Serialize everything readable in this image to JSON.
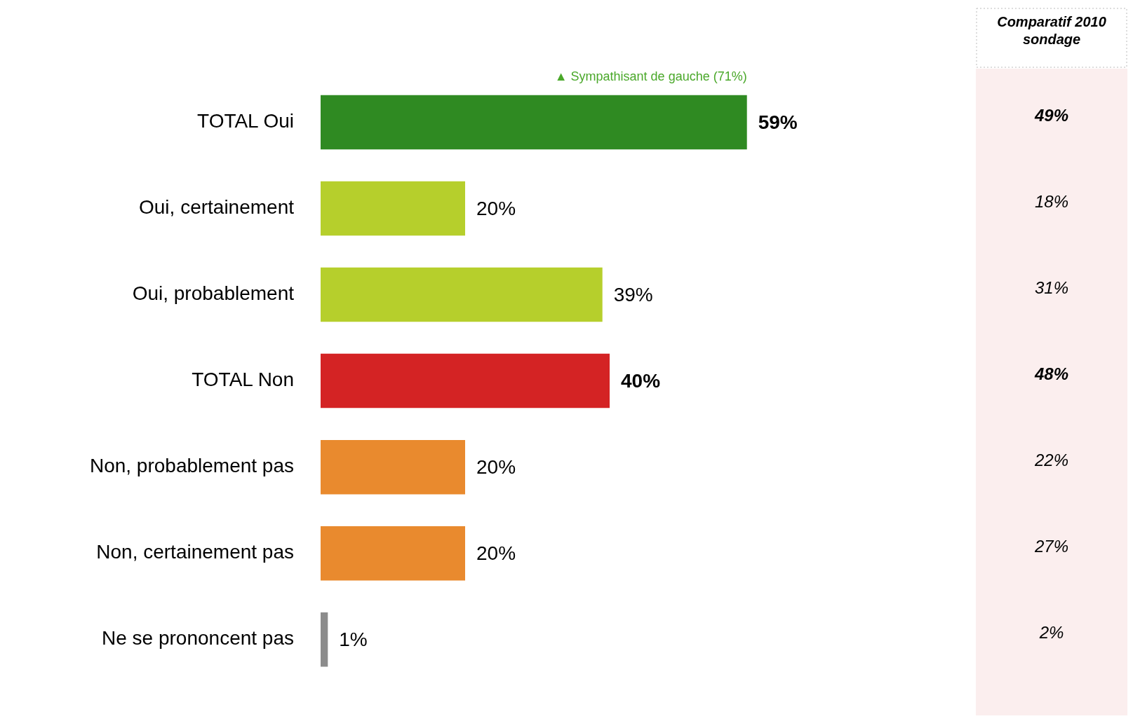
{
  "chart_data": {
    "type": "bar",
    "orientation": "horizontal",
    "categories": [
      "TOTAL Oui",
      "Oui, certainement",
      "Oui, probablement",
      "TOTAL Non",
      "Non, probablement pas",
      "Non, certainement pas",
      "Ne se prononcent pas"
    ],
    "values": [
      59,
      20,
      39,
      40,
      20,
      20,
      1
    ],
    "colors": [
      "#2f8a22",
      "#b6cf2c",
      "#b6cf2c",
      "#d42324",
      "#e98a2e",
      "#e98a2e",
      "#8c8c8c"
    ],
    "value_labels": [
      "59%",
      "20%",
      "39%",
      "40%",
      "20%",
      "20%",
      "1%"
    ],
    "legend": false,
    "annotations": [
      "Comparatif 2010 sondage",
      {
        "text": "▲ Sympathisant de gauche (71%)",
        "x": 59,
        "y": "TOTAL Oui"
      },
      "49%",
      "18%",
      "31%",
      "48%",
      "22%",
      "27%",
      "2%"
    ]
  }
}
